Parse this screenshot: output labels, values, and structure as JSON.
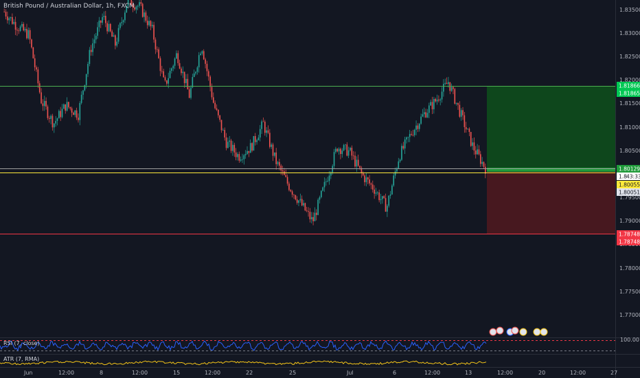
{
  "header": {
    "title": "British Pound / Australian Dollar, 1h, FXCM"
  },
  "indicators": {
    "rsi_label": "RSI (7, close)",
    "rsi_value": "100.00",
    "atr_label": "ATR (7, RMA)"
  },
  "price_axis": {
    "ticks": [
      "1.83500",
      "1.83000",
      "1.82500",
      "1.82000",
      "1.81500",
      "1.81000",
      "1.80500",
      "1.79500",
      "1.79000",
      "1.78500",
      "1.78000",
      "1.77500",
      "1.77000"
    ]
  },
  "time_axis": {
    "ticks": [
      "Jun",
      "12:00",
      "8",
      "12:00",
      "15",
      "12:00",
      "22",
      "25",
      "Jul",
      "6",
      "12:00",
      "13",
      "12:00",
      "20",
      "12:00",
      "27"
    ]
  },
  "badges": {
    "tp_1": "1.81866",
    "tp_2": "1.81865",
    "entry": "1.80129",
    "current_price": "1.8",
    "countdown": "43:33",
    "yellow_level": "1.80055",
    "white_level": "1.80051",
    "sl_1": "1.78748",
    "sl_2": "1.78748"
  },
  "colors": {
    "background": "#131722",
    "bull": "#26a69a",
    "bear": "#ef5350",
    "tp_line": "#4caf50",
    "sl_line": "#f23645",
    "yellow": "#ffeb3b",
    "rsi": "#2962ff",
    "atr": "#f5c518",
    "profit_zone": "#0e4d1c",
    "loss_zone": "#4a1820"
  },
  "chart_data": {
    "type": "candlestick",
    "title": "British Pound / Australian Dollar, 1h, FXCM",
    "ylim": [
      1.7658,
      1.8365
    ],
    "levels": {
      "take_profit": 1.81866,
      "entry": 1.80129,
      "yellow_line": 1.80055,
      "stop_loss": 1.78748
    },
    "price_path": [
      {
        "t": "Jun 1",
        "price": 1.834
      },
      {
        "t": "Jun 2",
        "price": 1.831
      },
      {
        "t": "Jun 3",
        "price": 1.829
      },
      {
        "t": "Jun 4",
        "price": 1.815
      },
      {
        "t": "Jun 5",
        "price": 1.81
      },
      {
        "t": "Jun 7",
        "price": 1.814
      },
      {
        "t": "Jun 8",
        "price": 1.812
      },
      {
        "t": "Jun 9",
        "price": 1.826
      },
      {
        "t": "Jun 10",
        "price": 1.833
      },
      {
        "t": "Jun 11",
        "price": 1.827
      },
      {
        "t": "Jun 12",
        "price": 1.8365
      },
      {
        "t": "Jun 14",
        "price": 1.835
      },
      {
        "t": "Jun 15",
        "price": 1.83
      },
      {
        "t": "Jun 16",
        "price": 1.818
      },
      {
        "t": "Jun 17",
        "price": 1.825
      },
      {
        "t": "Jun 18",
        "price": 1.816
      },
      {
        "t": "Jun 19",
        "price": 1.827
      },
      {
        "t": "Jun 21",
        "price": 1.814
      },
      {
        "t": "Jun 22",
        "price": 1.806
      },
      {
        "t": "Jun 23",
        "price": 1.803
      },
      {
        "t": "Jun 24",
        "price": 1.805
      },
      {
        "t": "Jun 25",
        "price": 1.81
      },
      {
        "t": "Jun 26",
        "price": 1.802
      },
      {
        "t": "Jun 28",
        "price": 1.797
      },
      {
        "t": "Jun 29",
        "price": 1.793
      },
      {
        "t": "Jun 30",
        "price": 1.789
      },
      {
        "t": "Jul 1",
        "price": 1.797
      },
      {
        "t": "Jul 2",
        "price": 1.805
      },
      {
        "t": "Jul 3",
        "price": 1.804
      },
      {
        "t": "Jul 5",
        "price": 1.799
      },
      {
        "t": "Jul 6",
        "price": 1.796
      },
      {
        "t": "Jul 7",
        "price": 1.792
      },
      {
        "t": "Jul 8",
        "price": 1.803
      },
      {
        "t": "Jul 9",
        "price": 1.808
      },
      {
        "t": "Jul 10",
        "price": 1.812
      },
      {
        "t": "Jul 11",
        "price": 1.815
      },
      {
        "t": "Jul 12",
        "price": 1.819
      },
      {
        "t": "Jul 13",
        "price": 1.812
      },
      {
        "t": "Jul 14",
        "price": 1.805
      },
      {
        "t": "Jul 15",
        "price": 1.8005
      }
    ]
  }
}
